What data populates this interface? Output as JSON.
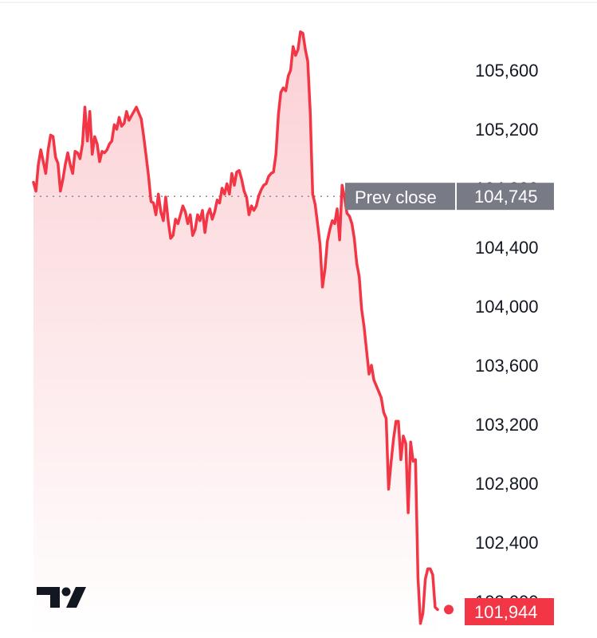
{
  "chart_data": {
    "type": "area",
    "title": "",
    "xlabel": "",
    "ylabel": "",
    "ylim": [
      101820,
      105960
    ],
    "y_ticks": [
      "105,600",
      "105,200",
      "104,800",
      "104,400",
      "104,000",
      "103,600",
      "103,200",
      "102,800",
      "102,400",
      "102,000"
    ],
    "y_tick_values": [
      105600,
      105200,
      104800,
      104400,
      104000,
      103600,
      103200,
      102800,
      102400,
      102000
    ],
    "prev_close": {
      "label": "Prev close",
      "value_text": "104,745",
      "value": 104745
    },
    "last_price": {
      "value_text": "101,944",
      "value": 101944
    },
    "series": [
      {
        "values": [
          104840,
          104780,
          104960,
          105060,
          104980,
          104900,
          105060,
          105160,
          105150,
          105010,
          104970,
          104780,
          104860,
          104960,
          105040,
          104960,
          104900,
          105050,
          105040,
          105000,
          105100,
          105350,
          105120,
          105320,
          105030,
          105150,
          105100,
          104980,
          105050,
          105040,
          105060,
          105100,
          105120,
          105230,
          105200,
          105280,
          105220,
          105240,
          105320,
          105260,
          105290,
          105320,
          105350,
          105310,
          105270,
          105150,
          105020,
          104880,
          104710,
          104700,
          104620,
          104760,
          104640,
          104580,
          104740,
          104580,
          104460,
          104480,
          104590,
          104560,
          104620,
          104680,
          104640,
          104560,
          104620,
          104480,
          104520,
          104620,
          104580,
          104650,
          104500,
          104620,
          104660,
          104590,
          104640,
          104720,
          104700,
          104800,
          104760,
          104830,
          104760,
          104900,
          104820,
          104910,
          104920,
          104860,
          104780,
          104740,
          104620,
          104680,
          104650,
          104680,
          104750,
          104790,
          104820,
          104830,
          104880,
          104900,
          104910,
          105030,
          105300,
          105450,
          105480,
          105460,
          105560,
          105600,
          105760,
          105700,
          105740,
          105860,
          105850,
          105740,
          105660,
          105320,
          104760,
          104690,
          104560,
          104420,
          104130,
          104250,
          104440,
          104520,
          104580,
          104560,
          104660,
          104450,
          104820,
          104740,
          104630,
          104610,
          104560,
          104460,
          104290,
          104200,
          103980,
          103860,
          103700,
          103540,
          103600,
          103500,
          103460,
          103420,
          103380,
          103280,
          103240,
          102760,
          102940,
          103100,
          103220,
          103220,
          102960,
          103120,
          103070,
          102600,
          103080,
          102950,
          102960,
          102160,
          101850,
          101920,
          102150,
          102220,
          102220,
          102180,
          101960,
          101944
        ]
      }
    ]
  },
  "colors": {
    "line": "#f23645",
    "fill_top": "#fbd0d4",
    "fill_bottom": "#ffffff",
    "prev_close_badge": "#787b86",
    "last_price_badge": "#f23645"
  },
  "watermark": "TradingView"
}
